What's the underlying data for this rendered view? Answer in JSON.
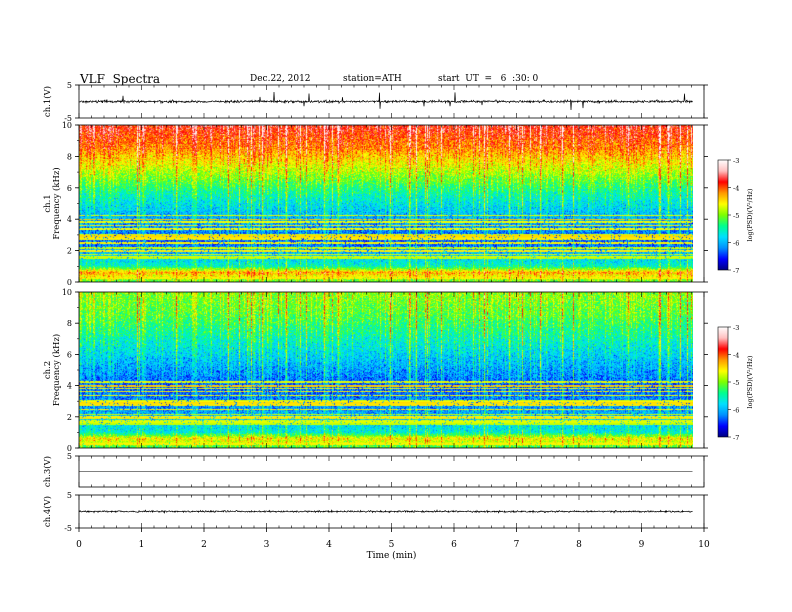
{
  "header": {
    "title": "VLF  Spectra",
    "date": "Dec.22, 2012",
    "station": "station=ATH",
    "start": "start  UT  =   6  :30: 0"
  },
  "chart_data": {
    "type": "heatmap",
    "xlabel": "Time  (min)",
    "x_ticks": [
      "0",
      "1",
      "2",
      "3",
      "4",
      "5",
      "6",
      "7",
      "8",
      "9",
      "10"
    ],
    "xlim": [
      0,
      10
    ],
    "data_end_min": 9.82,
    "colormap": [
      "#000080",
      "#0000ff",
      "#0090ff",
      "#00e0ff",
      "#00ff90",
      "#7cff00",
      "#ffff00",
      "#ff9900",
      "#ff0000",
      "#ffc0c0",
      "#ffffff"
    ],
    "panels": [
      {
        "id": "ch1-waveform",
        "type": "line",
        "ylabel": "ch.1(V)",
        "ylim": [
          -5,
          5
        ],
        "y_ticks": [
          "5",
          "-5"
        ],
        "baseline_v": 0.0,
        "noise_v": 0.35,
        "spike_v": 2.8
      },
      {
        "id": "ch1-spectrogram",
        "type": "heatmap",
        "ylabel_top": "ch.1",
        "ylabel": "Frequency  (kHz)",
        "ylim_khz": [
          0,
          10
        ],
        "y_ticks": [
          "0",
          "2",
          "4",
          "6",
          "8",
          "10"
        ],
        "colorbar": {
          "label": "log(PSD)(V²/Hz)",
          "range": [
            -7,
            -3
          ],
          "ticks": [
            "-3",
            "-4",
            "-5",
            "-6",
            "-7"
          ]
        },
        "level_profile": [
          {
            "f": 0.0,
            "v": -5.2
          },
          {
            "f": 0.6,
            "v": -4.3
          },
          {
            "f": 1.0,
            "v": -5.6
          },
          {
            "f": 2.5,
            "v": -6.4
          },
          {
            "f": 4.0,
            "v": -6.1
          },
          {
            "f": 5.5,
            "v": -5.6
          },
          {
            "f": 7.0,
            "v": -4.9
          },
          {
            "f": 8.5,
            "v": -4.2
          },
          {
            "f": 10.0,
            "v": -3.8
          }
        ]
      },
      {
        "id": "ch2-spectrogram",
        "type": "heatmap",
        "ylabel_top": "ch.2",
        "ylabel": "Frequency  (kHz)",
        "ylim_khz": [
          0,
          10
        ],
        "y_ticks": [
          "0",
          "2",
          "4",
          "6",
          "8",
          "10"
        ],
        "colorbar": {
          "label": "log(PSD)(V²/Hz)",
          "range": [
            -7,
            -3
          ],
          "ticks": [
            "-3",
            "-4",
            "-5",
            "-6",
            "-7"
          ]
        },
        "level_profile": [
          {
            "f": 0.0,
            "v": -5.3
          },
          {
            "f": 0.6,
            "v": -4.6
          },
          {
            "f": 1.0,
            "v": -5.7
          },
          {
            "f": 2.5,
            "v": -6.2
          },
          {
            "f": 4.0,
            "v": -6.4
          },
          {
            "f": 5.5,
            "v": -6.0
          },
          {
            "f": 7.0,
            "v": -5.6
          },
          {
            "f": 8.5,
            "v": -5.2
          },
          {
            "f": 10.0,
            "v": -5.0
          }
        ]
      },
      {
        "id": "ch3-waveform",
        "type": "line",
        "ylabel": "ch.3(V)",
        "ylim": [
          -5,
          5
        ],
        "y_ticks": [
          "5"
        ],
        "baseline_v": 0.0,
        "noise_v": 0.02,
        "spike_v": 0.0
      },
      {
        "id": "ch4-waveform",
        "type": "line",
        "ylabel": "ch.4(V)",
        "ylim": [
          -5,
          5
        ],
        "y_ticks": [
          "5",
          "-5"
        ],
        "baseline_v": 0.0,
        "noise_v": 0.25,
        "spike_v": 0.0
      }
    ]
  }
}
